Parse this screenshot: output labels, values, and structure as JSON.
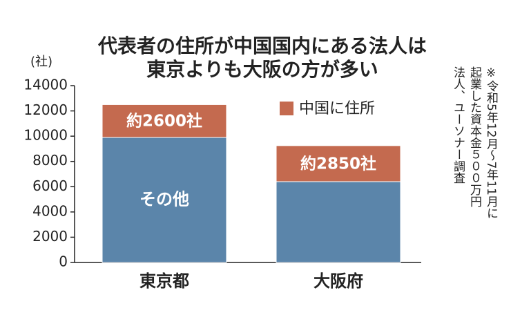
{
  "chart_data": {
    "type": "stacked_bar",
    "title": [
      "代表者の住所が中国国内にある法人は",
      "東京よりも大阪の方が多い"
    ],
    "y_unit": "(社)",
    "categories": [
      "東京都",
      "大阪府"
    ],
    "series": [
      {
        "name": "その他",
        "color": "#5b85aa",
        "values": [
          9900,
          6400
        ]
      },
      {
        "name": "中国に住所",
        "color": "#c46a4f",
        "values": [
          2600,
          2850
        ],
        "value_labels": [
          "約2600社",
          "約2850社"
        ]
      }
    ],
    "ylim": [
      0,
      14000
    ],
    "yticks": [
      0,
      2000,
      4000,
      6000,
      8000,
      10000,
      12000,
      14000
    ],
    "grid": false,
    "note": [
      "※令和5年12月～7年11月に",
      "起業した資本金５００万円",
      "法人、ユーソナー調査"
    ]
  }
}
